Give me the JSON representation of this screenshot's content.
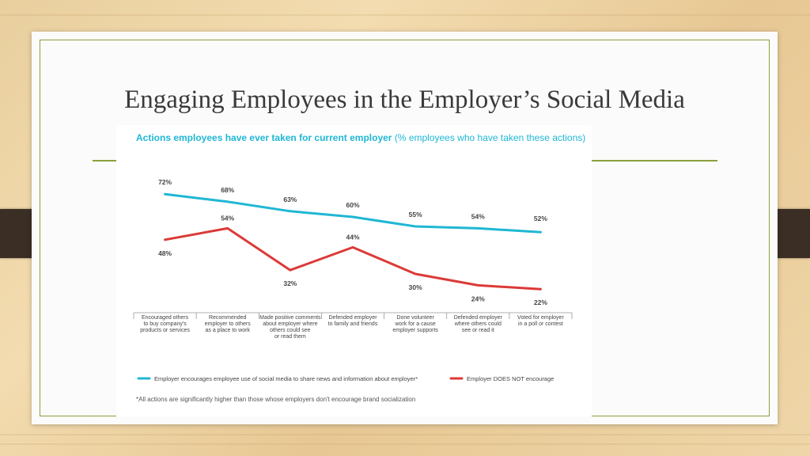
{
  "slide": {
    "title": "Engaging Employees in the Employer’s Social Media"
  },
  "chart_data": {
    "type": "line",
    "title": "Actions employees have ever taken for current employer",
    "subtitle": "(% employees who have taken these actions)",
    "categories": [
      [
        "Encouraged others",
        "to buy company's",
        "products or services"
      ],
      [
        "Recommended",
        "employer to others",
        "as a place to work"
      ],
      [
        "Made positive comments",
        "about employer where",
        "others could see",
        "or read them"
      ],
      [
        "Defended employer",
        "to family and friends"
      ],
      [
        "Done volunteer",
        "work for a cause",
        "employer supports"
      ],
      [
        "Defended employer",
        "where others could",
        "see or read it"
      ],
      [
        "Voted for employer",
        "in a poll or contest"
      ]
    ],
    "series": [
      {
        "name": "Employer encourages employee use of social media to share news and information about employer*",
        "color": "#1fb7d4",
        "values": [
          72,
          68,
          63,
          60,
          55,
          54,
          52
        ],
        "labels": [
          "72%",
          "68%",
          "63%",
          "60%",
          "55%",
          "54%",
          "52%"
        ]
      },
      {
        "name": "Employer DOES NOT encourage",
        "color": "#dc3a37",
        "values": [
          48,
          54,
          32,
          44,
          30,
          24,
          22
        ],
        "labels": [
          "48%",
          "54%",
          "32%",
          "44%",
          "30%",
          "24%",
          "22%"
        ]
      }
    ],
    "ylim": [
      20,
      75
    ],
    "footnote": "*All actions are significantly higher than those whose employers don't encourage brand socialization"
  }
}
